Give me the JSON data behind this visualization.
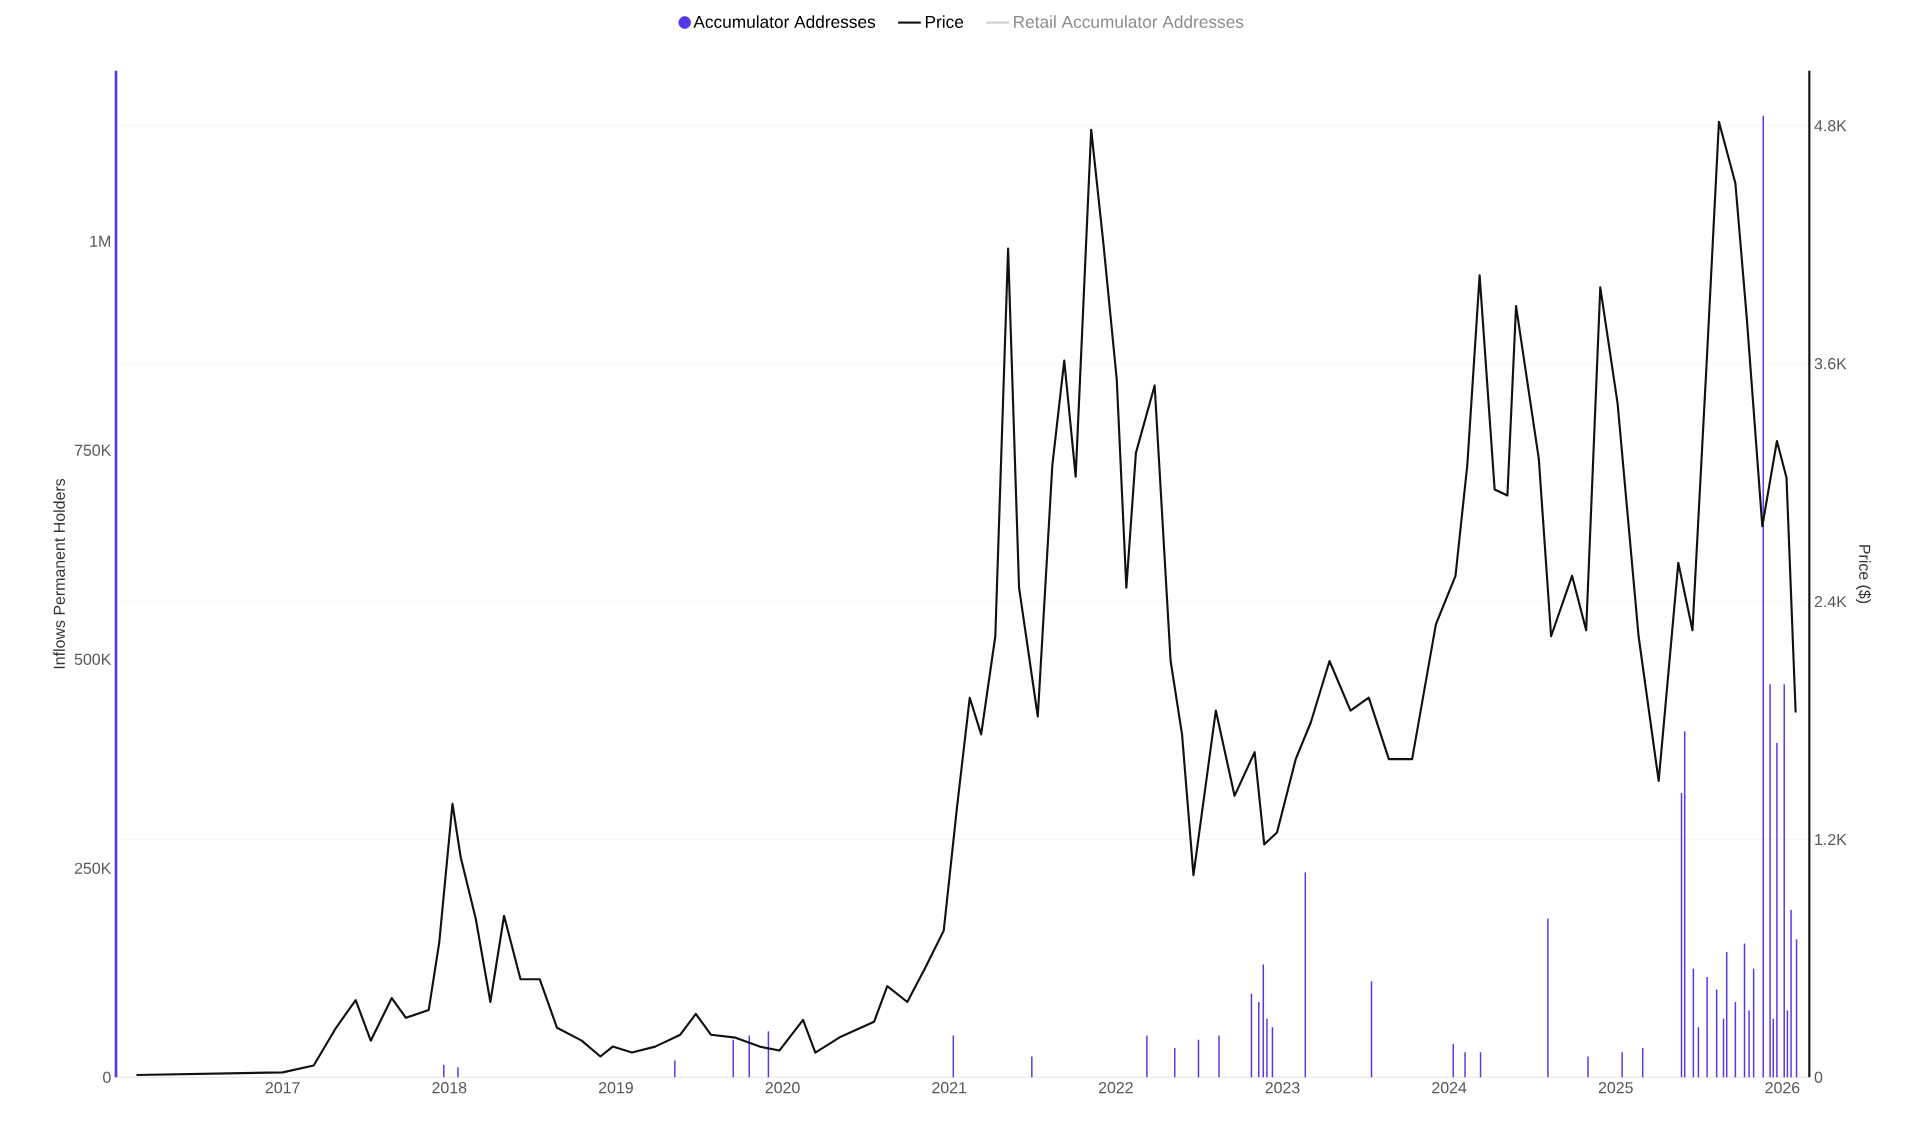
{
  "chart_data": {
    "type": "bar",
    "ylabel": "Inflows Permanent Holders",
    "y2label": "Price ($)",
    "xlim": [
      "2016-01-01",
      "2026-03-01"
    ],
    "xticks": [
      "2017",
      "2018",
      "2019",
      "2020",
      "2021",
      "2022",
      "2023",
      "2024",
      "2025",
      "2026"
    ],
    "ylim": [
      0,
      1204000
    ],
    "yticks": [
      0,
      {
        "value": 250000,
        "label": "250K"
      },
      {
        "value": 500000,
        "label": "500K"
      },
      {
        "value": 750000,
        "label": "750K"
      },
      {
        "value": 1000000,
        "label": "1M"
      }
    ],
    "y2lim": [
      0,
      5078
    ],
    "y2ticks": [
      0,
      {
        "value": 1200,
        "label": "1.2K"
      },
      {
        "value": 2400,
        "label": "2.4K"
      },
      {
        "value": 3600,
        "label": "3.6K"
      },
      {
        "value": 4800,
        "label": "4.8K"
      }
    ],
    "grid": "y2",
    "legend": "top",
    "series": [
      {
        "name": "Accumulator Addresses",
        "color": "#5438e8",
        "x": [
          "2017-12-20",
          "2018-01-20",
          "2019-05-10",
          "2019-09-15",
          "2019-10-20",
          "2019-12-01",
          "2021-01-10",
          "2021-07-01",
          "2022-03-10",
          "2022-05-10",
          "2022-07-01",
          "2022-08-15",
          "2022-10-25",
          "2022-11-10",
          "2022-11-20",
          "2022-11-28",
          "2022-12-10",
          "2023-02-20",
          "2023-07-15",
          "2024-01-10",
          "2024-02-05",
          "2024-03-10",
          "2024-08-05",
          "2024-11-01",
          "2025-01-15",
          "2025-03-01",
          "2025-05-25",
          "2025-06-01",
          "2025-06-20",
          "2025-07-01",
          "2025-07-20",
          "2025-08-10",
          "2025-08-25",
          "2025-09-01",
          "2025-09-20",
          "2025-10-10",
          "2025-10-20",
          "2025-10-30",
          "2025-11-20",
          "2025-12-05",
          "2025-12-12",
          "2025-12-20",
          "2026-01-05",
          "2026-01-12",
          "2026-01-20",
          "2026-02-01"
        ],
        "values": [
          15000,
          12000,
          20000,
          45000,
          50000,
          55000,
          50000,
          25000,
          50000,
          35000,
          45000,
          50000,
          100000,
          90000,
          135000,
          70000,
          60000,
          245000,
          115000,
          40000,
          30000,
          30000,
          190000,
          25000,
          30000,
          35000,
          340000,
          414000,
          130000,
          60000,
          120000,
          105000,
          70000,
          150000,
          90000,
          160000,
          80000,
          130000,
          1150000,
          470000,
          70000,
          400000,
          470000,
          80000,
          200000,
          165000
        ]
      },
      {
        "name": "Price",
        "type": "line",
        "axis": "y2",
        "color": "#111111",
        "x": [
          "2016-02-15",
          "2017-01-01",
          "2017-03-10",
          "2017-04-28",
          "2017-06-10",
          "2017-07-13",
          "2017-08-28",
          "2017-09-28",
          "2017-11-17",
          "2017-12-10",
          "2018-01-08",
          "2018-01-26",
          "2018-02-28",
          "2018-04-01",
          "2018-05-01",
          "2018-06-06",
          "2018-07-18",
          "2018-08-25",
          "2018-10-18",
          "2018-11-28",
          "2018-12-25",
          "2019-02-05",
          "2019-03-28",
          "2019-05-22",
          "2019-06-25",
          "2019-07-28",
          "2019-09-20",
          "2019-11-12",
          "2019-12-25",
          "2020-02-15",
          "2020-03-13",
          "2020-05-08",
          "2020-07-20",
          "2020-08-18",
          "2020-10-01",
          "2020-11-10",
          "2020-12-20",
          "2021-01-18",
          "2021-02-15",
          "2021-03-12",
          "2021-04-12",
          "2021-05-10",
          "2021-06-03",
          "2021-07-14",
          "2021-08-15",
          "2021-09-10",
          "2021-10-05",
          "2021-11-08",
          "2021-12-05",
          "2022-01-03",
          "2022-01-24",
          "2022-02-14",
          "2022-03-27",
          "2022-05-01",
          "2022-05-26",
          "2022-06-20",
          "2022-08-08",
          "2022-09-18",
          "2022-11-01",
          "2022-11-22",
          "2022-12-20",
          "2023-01-30",
          "2023-03-04",
          "2023-04-14",
          "2023-05-30",
          "2023-07-09",
          "2023-08-22",
          "2023-10-12",
          "2023-12-03",
          "2024-01-15",
          "2024-02-10",
          "2024-03-08",
          "2024-04-10",
          "2024-05-08",
          "2024-05-27",
          "2024-07-16",
          "2024-08-12",
          "2024-09-27",
          "2024-10-28",
          "2024-11-28",
          "2025-01-05",
          "2025-02-20",
          "2025-04-05",
          "2025-05-18",
          "2025-06-18",
          "2025-07-20",
          "2025-08-15",
          "2025-09-20",
          "2025-10-15",
          "2025-11-18",
          "2025-12-20",
          "2026-01-10",
          "2026-01-30"
        ],
        "values": [
          12,
          25,
          60,
          250,
          390,
          185,
          400,
          300,
          340,
          680,
          1380,
          1110,
          800,
          380,
          815,
          495,
          495,
          250,
          185,
          105,
          155,
          125,
          155,
          215,
          320,
          215,
          200,
          155,
          135,
          290,
          125,
          205,
          280,
          460,
          380,
          555,
          740,
          1360,
          1915,
          1730,
          2225,
          4180,
          2470,
          1820,
          3090,
          3615,
          3030,
          4780,
          4200,
          3520,
          2470,
          3150,
          3490,
          2100,
          1730,
          1020,
          1850,
          1420,
          1640,
          1175,
          1235,
          1605,
          1790,
          2100,
          1850,
          1915,
          1605,
          1605,
          2285,
          2530,
          3090,
          4045,
          2965,
          2935,
          3890,
          3120,
          2225,
          2530,
          2255,
          3985,
          3400,
          2225,
          1495,
          2595,
          2255,
          3645,
          4820,
          4510,
          3830,
          2780,
          3210,
          3025,
          1840
        ]
      },
      {
        "name": "Retail Accumulator Addresses",
        "type": "line",
        "color": "#cfcfd4"
      }
    ]
  }
}
